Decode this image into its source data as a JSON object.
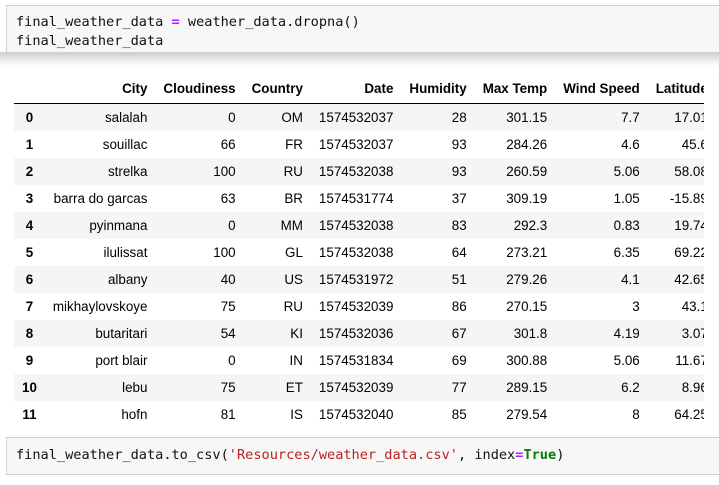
{
  "cell1": {
    "line1_var": "final_weather_data",
    "line1_op": "=",
    "line1_call": "weather_data.dropna()",
    "line2": "final_weather_data"
  },
  "table": {
    "columns": [
      "",
      "City",
      "Cloudiness",
      "Country",
      "Date",
      "Humidity",
      "Max Temp",
      "Wind Speed",
      "Latitude"
    ],
    "rows": [
      [
        "0",
        "salalah",
        "0",
        "OM",
        "1574532037",
        "28",
        "301.15",
        "7.7",
        "17.01"
      ],
      [
        "1",
        "souillac",
        "66",
        "FR",
        "1574532037",
        "93",
        "284.26",
        "4.6",
        "45.6"
      ],
      [
        "2",
        "strelka",
        "100",
        "RU",
        "1574532038",
        "93",
        "260.59",
        "5.06",
        "58.08"
      ],
      [
        "3",
        "barra do garcas",
        "63",
        "BR",
        "1574531774",
        "37",
        "309.19",
        "1.05",
        "-15.89"
      ],
      [
        "4",
        "pyinmana",
        "0",
        "MM",
        "1574532038",
        "83",
        "292.3",
        "0.83",
        "19.74"
      ],
      [
        "5",
        "ilulissat",
        "100",
        "GL",
        "1574532038",
        "64",
        "273.21",
        "6.35",
        "69.22"
      ],
      [
        "6",
        "albany",
        "40",
        "US",
        "1574531972",
        "51",
        "279.26",
        "4.1",
        "42.65"
      ],
      [
        "7",
        "mikhaylovskoye",
        "75",
        "RU",
        "1574532039",
        "86",
        "270.15",
        "3",
        "43.1"
      ],
      [
        "8",
        "butaritari",
        "54",
        "KI",
        "1574532036",
        "67",
        "301.8",
        "4.19",
        "3.07"
      ],
      [
        "9",
        "port blair",
        "0",
        "IN",
        "1574531834",
        "69",
        "300.88",
        "5.06",
        "11.67"
      ],
      [
        "10",
        "lebu",
        "75",
        "ET",
        "1574532039",
        "77",
        "289.15",
        "6.2",
        "8.96"
      ],
      [
        "11",
        "hofn",
        "81",
        "IS",
        "1574532040",
        "85",
        "279.54",
        "8",
        "64.25"
      ]
    ]
  },
  "cell2": {
    "prefix": "final_weather_data.to_csv(",
    "string": "'Resources/weather_data.csv'",
    "mid": ", index",
    "op": "=",
    "kw": "True",
    "suffix": ")"
  }
}
